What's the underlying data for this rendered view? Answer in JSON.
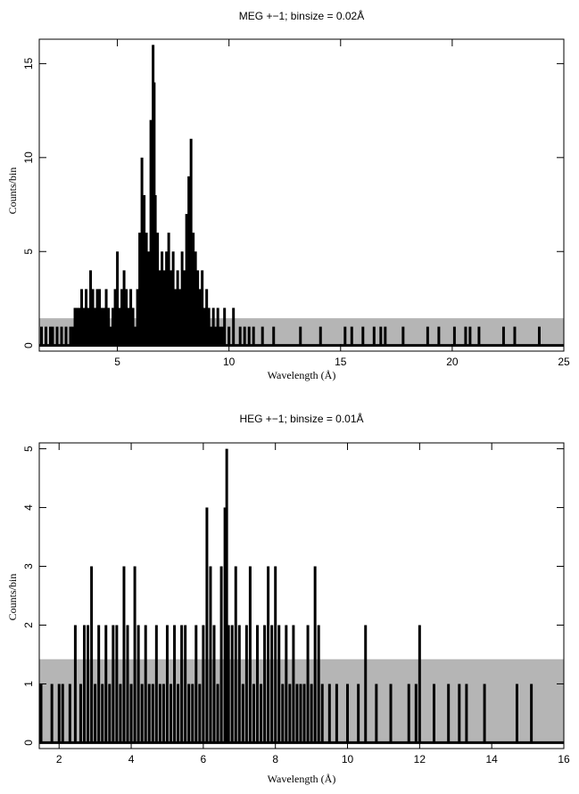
{
  "chart_data": [
    {
      "type": "line",
      "subtype": "step-histogram",
      "title": "MEG +−1; binsize = 0.02Å",
      "xlabel": "Wavelength (Å)",
      "ylabel": "Counts/bin",
      "xlim": [
        1.5,
        25
      ],
      "ylim": [
        -0.3,
        16.3
      ],
      "xticks": [
        5,
        10,
        15,
        20,
        25
      ],
      "yticks": [
        0,
        5,
        10,
        15
      ],
      "grid": false,
      "legend": "none",
      "band": {
        "y0": 0,
        "y1": 1.45,
        "color": "#b5b5b5"
      },
      "series": [
        {
          "color": "#000000",
          "x": [
            1.6,
            1.8,
            2.0,
            2.1,
            2.3,
            2.5,
            2.7,
            2.9,
            3.0,
            3.1,
            3.2,
            3.3,
            3.4,
            3.5,
            3.6,
            3.7,
            3.8,
            3.9,
            4.0,
            4.1,
            4.2,
            4.3,
            4.4,
            4.5,
            4.6,
            4.7,
            4.8,
            4.9,
            5.0,
            5.1,
            5.2,
            5.3,
            5.4,
            5.5,
            5.6,
            5.7,
            5.8,
            5.9,
            6.0,
            6.1,
            6.2,
            6.3,
            6.4,
            6.5,
            6.6,
            6.65,
            6.7,
            6.8,
            6.9,
            7.0,
            7.1,
            7.2,
            7.3,
            7.4,
            7.5,
            7.6,
            7.7,
            7.8,
            7.9,
            8.0,
            8.1,
            8.2,
            8.3,
            8.4,
            8.5,
            8.6,
            8.7,
            8.8,
            8.9,
            9.0,
            9.1,
            9.2,
            9.3,
            9.4,
            9.5,
            9.6,
            9.7,
            9.8,
            10.0,
            10.2,
            10.5,
            10.7,
            10.9,
            11.1,
            11.5,
            12.0,
            13.2,
            14.1,
            15.2,
            15.5,
            16.0,
            16.5,
            16.8,
            17.0,
            17.8,
            18.9,
            19.4,
            20.1,
            20.6,
            20.8,
            21.2,
            22.3,
            22.8,
            23.9
          ],
          "values": [
            1,
            1,
            1,
            1,
            1,
            1,
            1,
            1,
            1,
            2,
            2,
            2,
            3,
            2,
            3,
            2,
            4,
            3,
            2,
            3,
            3,
            2,
            2,
            3,
            2,
            1,
            2,
            3,
            5,
            2,
            3,
            4,
            3,
            2,
            3,
            2,
            1,
            3,
            6,
            10,
            8,
            6,
            5,
            12,
            16,
            14,
            8,
            6,
            4,
            5,
            4,
            5,
            6,
            4,
            5,
            3,
            4,
            3,
            5,
            4,
            7,
            9,
            11,
            6,
            5,
            4,
            3,
            4,
            2,
            3,
            2,
            1,
            2,
            1,
            2,
            1,
            1,
            2,
            1,
            2,
            1,
            1,
            1,
            1,
            1,
            1,
            1,
            1,
            1,
            1,
            1,
            1,
            1,
            1,
            1,
            1,
            1,
            1,
            1,
            1,
            1,
            1,
            1,
            1
          ]
        }
      ]
    },
    {
      "type": "line",
      "subtype": "step-histogram",
      "title": "HEG +−1; binsize = 0.01Å",
      "xlabel": "Wavelength (Å)",
      "ylabel": "Counts/bin",
      "xlim": [
        1.45,
        16.0
      ],
      "ylim": [
        -0.1,
        5.1
      ],
      "xticks": [
        2,
        4,
        6,
        8,
        10,
        12,
        14,
        16
      ],
      "yticks": [
        0,
        1,
        2,
        3,
        4,
        5
      ],
      "grid": false,
      "legend": "none",
      "band": {
        "y0": 0,
        "y1": 1.42,
        "color": "#b5b5b5"
      },
      "series": [
        {
          "color": "#000000",
          "x": [
            1.5,
            1.8,
            2.0,
            2.1,
            2.3,
            2.45,
            2.6,
            2.7,
            2.8,
            2.9,
            3.0,
            3.1,
            3.2,
            3.3,
            3.4,
            3.5,
            3.6,
            3.7,
            3.8,
            3.9,
            4.0,
            4.1,
            4.2,
            4.3,
            4.4,
            4.5,
            4.6,
            4.7,
            4.8,
            4.9,
            5.0,
            5.1,
            5.2,
            5.3,
            5.4,
            5.5,
            5.6,
            5.7,
            5.8,
            5.9,
            6.0,
            6.1,
            6.2,
            6.3,
            6.4,
            6.5,
            6.6,
            6.65,
            6.7,
            6.8,
            6.9,
            7.0,
            7.1,
            7.2,
            7.3,
            7.4,
            7.5,
            7.6,
            7.7,
            7.8,
            7.9,
            8.0,
            8.1,
            8.2,
            8.3,
            8.4,
            8.5,
            8.6,
            8.7,
            8.8,
            8.9,
            9.0,
            9.1,
            9.2,
            9.3,
            9.5,
            9.7,
            10.0,
            10.3,
            10.5,
            10.8,
            11.2,
            11.7,
            11.9,
            12.0,
            12.4,
            12.8,
            13.1,
            13.3,
            13.8,
            14.7,
            15.1
          ],
          "values": [
            1,
            1,
            1,
            1,
            1,
            2,
            1,
            2,
            2,
            3,
            1,
            2,
            1,
            2,
            1,
            2,
            2,
            1,
            3,
            2,
            1,
            3,
            2,
            1,
            2,
            1,
            1,
            2,
            1,
            1,
            2,
            1,
            2,
            1,
            2,
            2,
            1,
            1,
            2,
            1,
            2,
            4,
            3,
            2,
            1,
            3,
            4,
            5,
            2,
            2,
            3,
            2,
            1,
            2,
            3,
            1,
            2,
            1,
            2,
            3,
            2,
            3,
            2,
            1,
            2,
            1,
            2,
            1,
            1,
            1,
            2,
            1,
            3,
            2,
            1,
            1,
            1,
            1,
            1,
            2,
            1,
            1,
            1,
            1,
            2,
            1,
            1,
            1,
            1,
            1,
            1,
            1
          ]
        }
      ]
    }
  ]
}
